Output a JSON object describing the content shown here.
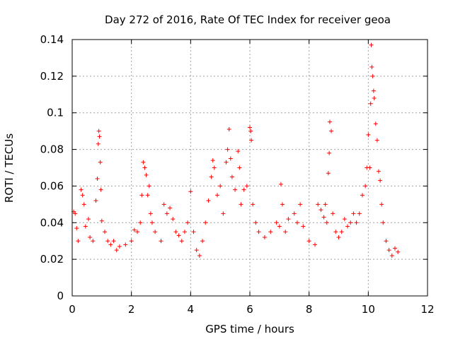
{
  "chart_data": {
    "type": "scatter",
    "title": "Day 272 of 2016, Rate Of TEC Index for receiver geoa",
    "xlabel": "GPS time / hours",
    "ylabel": "ROTI / TECUs",
    "xlim": [
      0,
      12
    ],
    "ylim": [
      0,
      0.14
    ],
    "xticks": [
      0,
      2,
      4,
      6,
      8,
      10,
      12
    ],
    "xtick_labels": [
      "0",
      "2",
      "4",
      "6",
      "8",
      "10",
      "12"
    ],
    "yticks": [
      0,
      0.02,
      0.04,
      0.06,
      0.08,
      0.1,
      0.12,
      0.14
    ],
    "ytick_labels": [
      "0",
      "0.02",
      "0.04",
      "0.06",
      "0.08",
      "0.1",
      "0.12",
      "0.14"
    ],
    "grid": true,
    "marker": "+",
    "color": "#ff0000",
    "series": [
      {
        "name": "ROTI",
        "points": [
          [
            0.05,
            0.046
          ],
          [
            0.1,
            0.045
          ],
          [
            0.15,
            0.037
          ],
          [
            0.2,
            0.03
          ],
          [
            0.3,
            0.058
          ],
          [
            0.35,
            0.055
          ],
          [
            0.4,
            0.05
          ],
          [
            0.45,
            0.038
          ],
          [
            0.55,
            0.042
          ],
          [
            0.6,
            0.032
          ],
          [
            0.7,
            0.03
          ],
          [
            0.8,
            0.052
          ],
          [
            0.85,
            0.064
          ],
          [
            0.88,
            0.083
          ],
          [
            0.9,
            0.09
          ],
          [
            0.92,
            0.087
          ],
          [
            0.95,
            0.073
          ],
          [
            0.97,
            0.058
          ],
          [
            1.0,
            0.041
          ],
          [
            1.1,
            0.035
          ],
          [
            1.2,
            0.03
          ],
          [
            1.3,
            0.028
          ],
          [
            1.4,
            0.03
          ],
          [
            1.5,
            0.025
          ],
          [
            1.6,
            0.027
          ],
          [
            1.8,
            0.028
          ],
          [
            2.0,
            0.03
          ],
          [
            2.1,
            0.036
          ],
          [
            2.2,
            0.035
          ],
          [
            2.3,
            0.04
          ],
          [
            2.35,
            0.055
          ],
          [
            2.4,
            0.073
          ],
          [
            2.45,
            0.07
          ],
          [
            2.5,
            0.066
          ],
          [
            2.55,
            0.055
          ],
          [
            2.6,
            0.06
          ],
          [
            2.65,
            0.045
          ],
          [
            2.7,
            0.04
          ],
          [
            2.8,
            0.035
          ],
          [
            3.0,
            0.03
          ],
          [
            3.1,
            0.05
          ],
          [
            3.2,
            0.045
          ],
          [
            3.3,
            0.048
          ],
          [
            3.4,
            0.042
          ],
          [
            3.5,
            0.035
          ],
          [
            3.6,
            0.033
          ],
          [
            3.7,
            0.03
          ],
          [
            3.8,
            0.035
          ],
          [
            3.9,
            0.04
          ],
          [
            4.0,
            0.057
          ],
          [
            4.1,
            0.035
          ],
          [
            4.2,
            0.025
          ],
          [
            4.3,
            0.022
          ],
          [
            4.4,
            0.03
          ],
          [
            4.5,
            0.04
          ],
          [
            4.6,
            0.052
          ],
          [
            4.7,
            0.065
          ],
          [
            4.75,
            0.074
          ],
          [
            4.8,
            0.07
          ],
          [
            4.9,
            0.055
          ],
          [
            5.0,
            0.06
          ],
          [
            5.1,
            0.045
          ],
          [
            5.2,
            0.073
          ],
          [
            5.25,
            0.08
          ],
          [
            5.3,
            0.091
          ],
          [
            5.35,
            0.075
          ],
          [
            5.4,
            0.065
          ],
          [
            5.5,
            0.058
          ],
          [
            5.6,
            0.079
          ],
          [
            5.65,
            0.07
          ],
          [
            5.7,
            0.05
          ],
          [
            5.8,
            0.058
          ],
          [
            5.9,
            0.06
          ],
          [
            6.0,
            0.092
          ],
          [
            6.03,
            0.09
          ],
          [
            6.05,
            0.085
          ],
          [
            6.1,
            0.05
          ],
          [
            6.2,
            0.04
          ],
          [
            6.3,
            0.035
          ],
          [
            6.5,
            0.032
          ],
          [
            6.7,
            0.035
          ],
          [
            6.9,
            0.04
          ],
          [
            7.0,
            0.038
          ],
          [
            7.05,
            0.061
          ],
          [
            7.1,
            0.05
          ],
          [
            7.2,
            0.035
          ],
          [
            7.3,
            0.042
          ],
          [
            7.5,
            0.045
          ],
          [
            7.6,
            0.04
          ],
          [
            7.7,
            0.05
          ],
          [
            7.8,
            0.038
          ],
          [
            8.0,
            0.03
          ],
          [
            8.2,
            0.028
          ],
          [
            8.3,
            0.05
          ],
          [
            8.4,
            0.047
          ],
          [
            8.5,
            0.043
          ],
          [
            8.55,
            0.05
          ],
          [
            8.6,
            0.04
          ],
          [
            8.65,
            0.067
          ],
          [
            8.68,
            0.078
          ],
          [
            8.7,
            0.095
          ],
          [
            8.75,
            0.09
          ],
          [
            8.8,
            0.045
          ],
          [
            8.9,
            0.035
          ],
          [
            9.0,
            0.032
          ],
          [
            9.1,
            0.035
          ],
          [
            9.2,
            0.042
          ],
          [
            9.3,
            0.038
          ],
          [
            9.4,
            0.04
          ],
          [
            9.5,
            0.045
          ],
          [
            9.6,
            0.04
          ],
          [
            9.7,
            0.045
          ],
          [
            9.8,
            0.055
          ],
          [
            9.9,
            0.06
          ],
          [
            9.95,
            0.07
          ],
          [
            10.0,
            0.088
          ],
          [
            10.05,
            0.07
          ],
          [
            10.08,
            0.105
          ],
          [
            10.1,
            0.137
          ],
          [
            10.12,
            0.125
          ],
          [
            10.15,
            0.12
          ],
          [
            10.18,
            0.112
          ],
          [
            10.2,
            0.108
          ],
          [
            10.25,
            0.094
          ],
          [
            10.3,
            0.085
          ],
          [
            10.35,
            0.068
          ],
          [
            10.4,
            0.063
          ],
          [
            10.45,
            0.05
          ],
          [
            10.5,
            0.04
          ],
          [
            10.6,
            0.03
          ],
          [
            10.7,
            0.025
          ],
          [
            10.8,
            0.022
          ],
          [
            10.9,
            0.026
          ],
          [
            11.0,
            0.024
          ]
        ]
      }
    ]
  }
}
